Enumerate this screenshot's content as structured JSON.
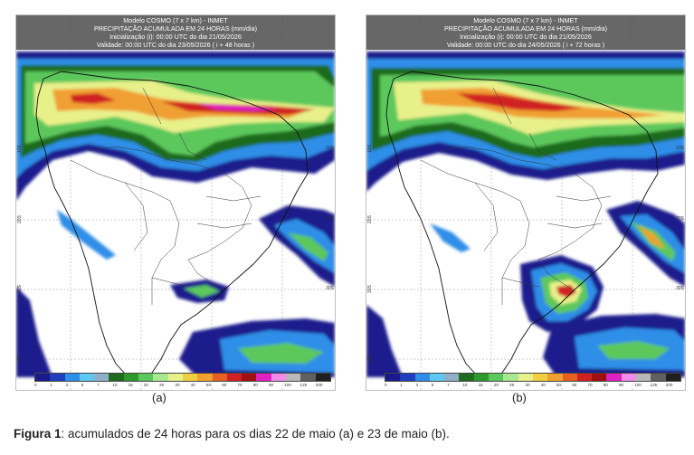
{
  "panels": [
    {
      "id": "a",
      "header": {
        "line1": "Modelo COSMO (7 x 7 km) - INMET",
        "line2": "PRECIPITAÇÃO ACUMULADA EM 24 HORAS (mm/dia)",
        "line3": "Inicialização (i): 00:00 UTC do dia 21/05/2026",
        "line4": "Validade: 00:00 UTC do dia 23/05/2026 ( i + 48 horas )"
      },
      "label": "(a)"
    },
    {
      "id": "b",
      "header": {
        "line1": "Modelo COSMO (7 x 7 km) - INMET",
        "line2": "PRECIPITAÇÃO ACUMULADA EM 24 HORAS (mm/dia)",
        "line3": "Inicialização (i): 00:00 UTC do dia 21/05/2026",
        "line4": "Validade: 00:00 UTC do dia 24/05/2026 ( i + 72 horas )"
      },
      "label": "(b)"
    }
  ],
  "lat_labels": [
    "10S",
    "20S",
    "30S",
    "40S",
    "50S"
  ],
  "lat_labels_right": [
    "10S",
    "20S",
    "30S"
  ],
  "colorbar": {
    "ticks": [
      "0",
      "1",
      "3",
      "5",
      "7",
      "10",
      "15",
      "20",
      "25",
      "30",
      "40",
      "50",
      "60",
      "70",
      "80",
      "90",
      "100",
      "125",
      "200"
    ],
    "colors": [
      "#1a1a8c",
      "#1f3fbf",
      "#2f8ee8",
      "#5fc8f0",
      "#8fb0c8",
      "#1f6b1f",
      "#2e9a2e",
      "#5cc85c",
      "#a8e890",
      "#e8f08a",
      "#f0d040",
      "#f0a030",
      "#e86020",
      "#d02020",
      "#a01010",
      "#e020c0",
      "#f08ce8",
      "#b8b8b8",
      "#606060",
      "#202020"
    ]
  },
  "caption": {
    "bold": "Figura 1",
    "text": ": acumulados de 24 horas para os dias 22 de maio (a) e 23 de maio (b)."
  }
}
